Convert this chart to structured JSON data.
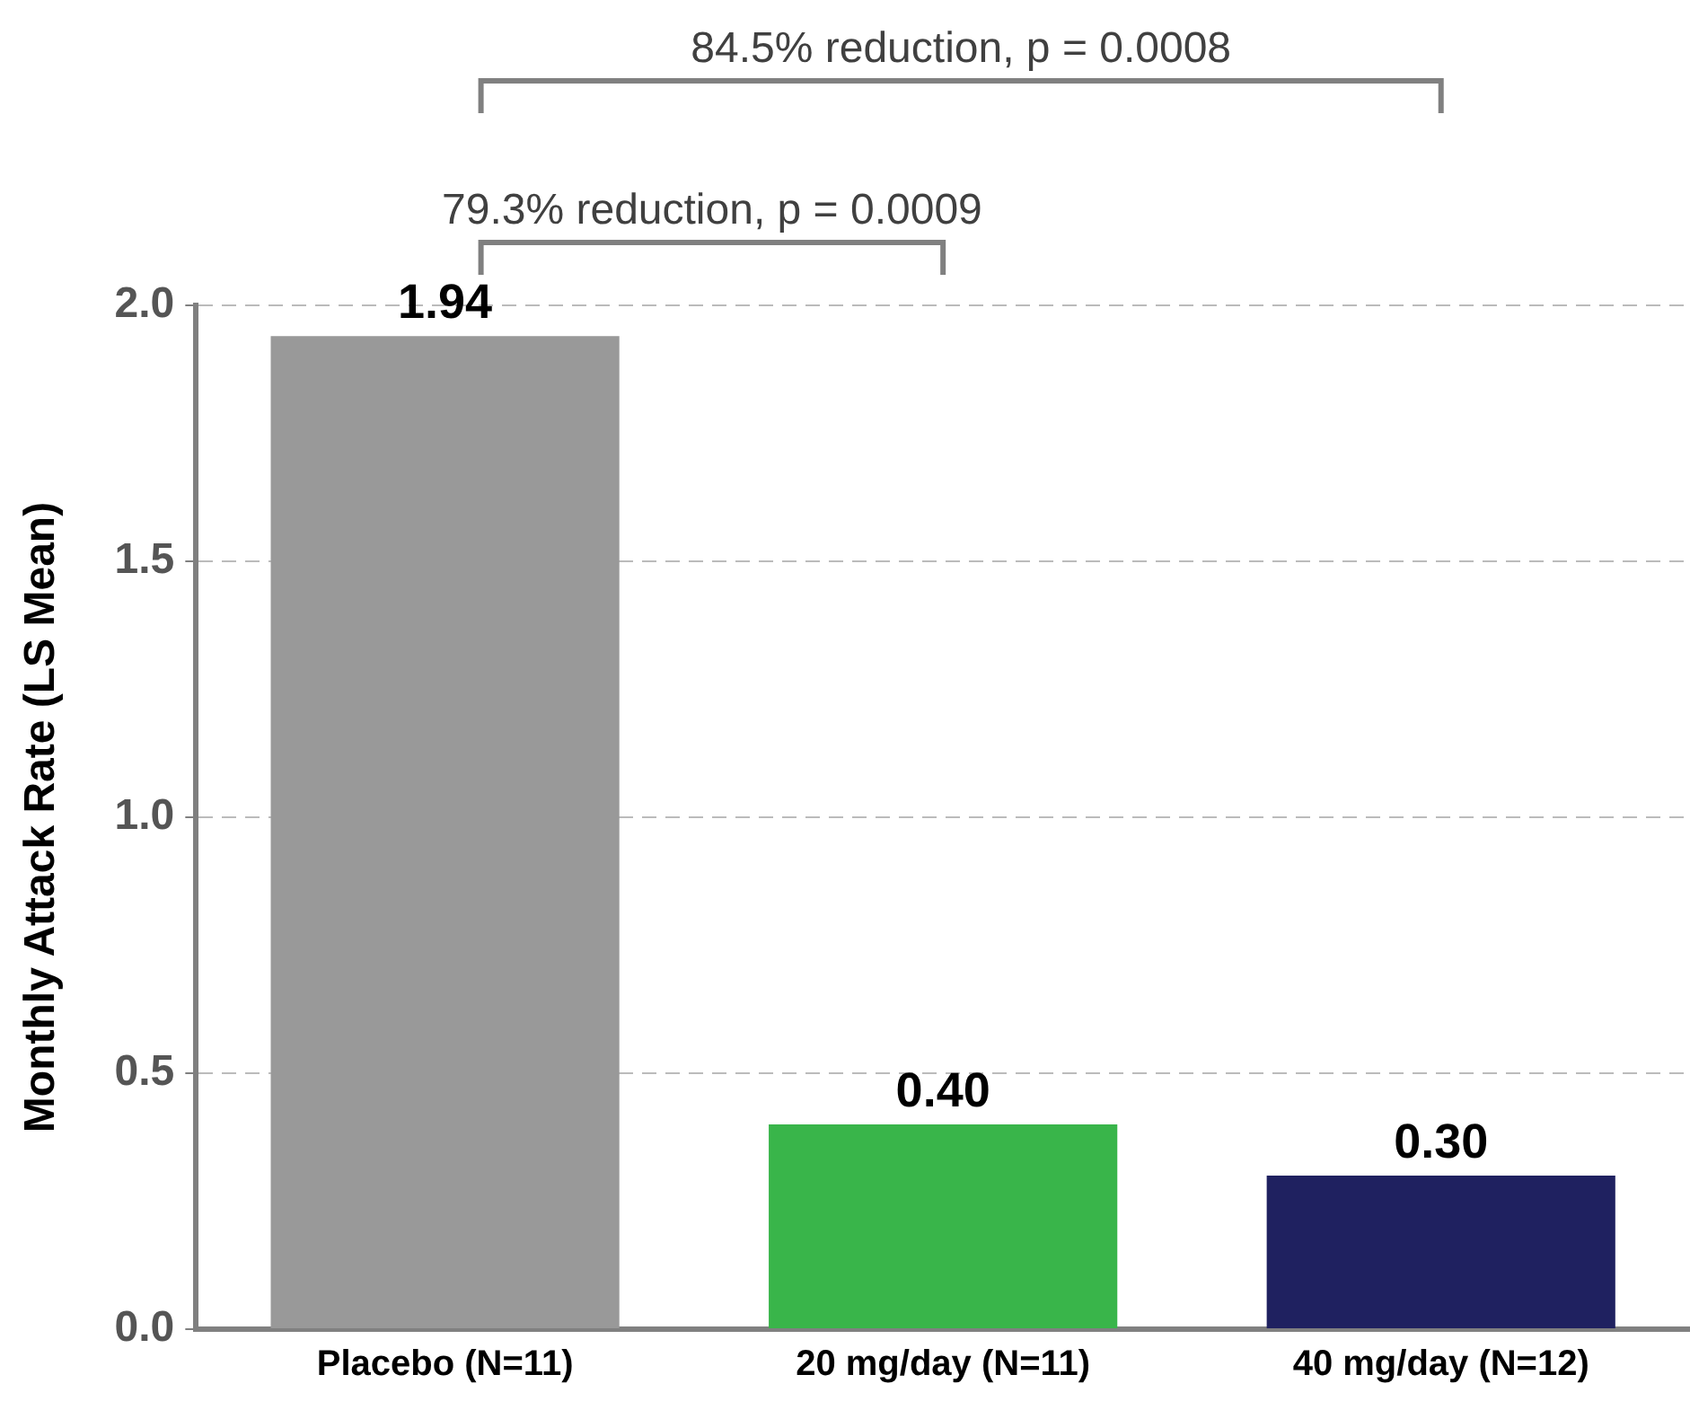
{
  "chart_data": {
    "type": "bar",
    "ylabel": "Monthly Attack Rate (LS Mean)",
    "categories": [
      "Placebo (N=11)",
      "20 mg/day (N=11)",
      "40 mg/day (N=12)"
    ],
    "values": [
      1.94,
      0.4,
      0.3
    ],
    "colors": [
      "#999999",
      "#39b54a",
      "#1f2160"
    ],
    "ylim": [
      0,
      2.0
    ],
    "yticks": [
      {
        "value": 0,
        "label": "0.0"
      },
      {
        "value": 0.5,
        "label": "0.5"
      },
      {
        "value": 1,
        "label": "1.0"
      },
      {
        "value": 1.5,
        "label": "1.5"
      },
      {
        "value": 2,
        "label": "2.0"
      }
    ],
    "value_labels": [
      "1.94",
      "0.40",
      "0.30"
    ],
    "grid": "y",
    "annotations": [
      "84.5% reduction, p = 0.0008",
      "79.3% reduction, p = 0.0009"
    ]
  }
}
